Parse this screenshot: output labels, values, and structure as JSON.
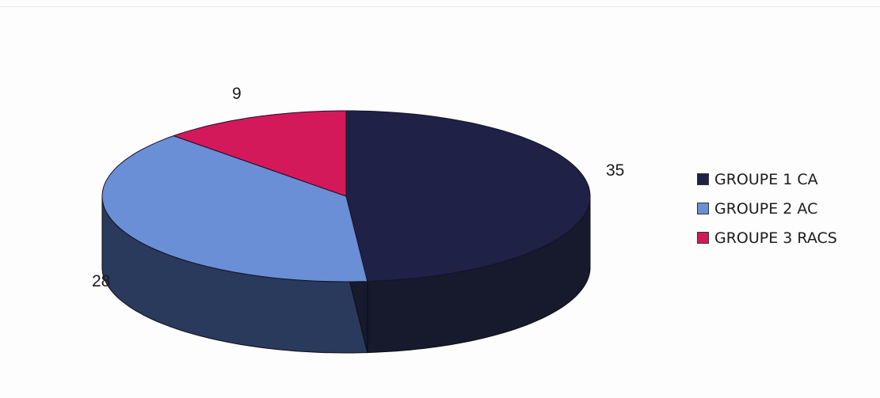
{
  "chart_data": {
    "type": "pie",
    "style": "3d",
    "series": [
      {
        "name": "GROUPE 1 CA",
        "value": 35,
        "color": "#1f2147",
        "side_color": "#161a2c"
      },
      {
        "name": "GROUPE 2 AC",
        "value": 28,
        "color": "#6b8fd6",
        "side_color": "#2a3a5c"
      },
      {
        "name": "GROUPE 3 RACS",
        "value": 9,
        "color": "#d4195a",
        "side_color": "#8a1240"
      }
    ],
    "labels": [
      "35",
      "28",
      "9"
    ],
    "legend_position": "right"
  }
}
